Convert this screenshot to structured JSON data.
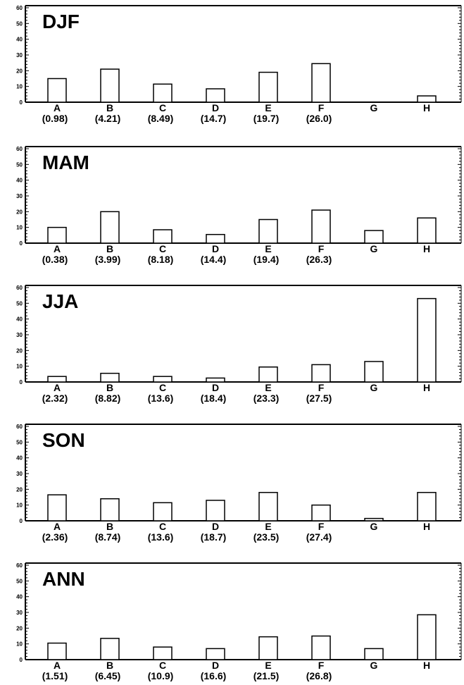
{
  "chart_data": [
    {
      "type": "bar",
      "title": "DJF",
      "categories": [
        "A",
        "B",
        "C",
        "D",
        "E",
        "F",
        "G",
        "H"
      ],
      "category_values": [
        "(0.98)",
        "(4.21)",
        "(8.49)",
        "(14.7)",
        "(19.7)",
        "(26.0)",
        "",
        ""
      ],
      "values": [
        15,
        21,
        11.5,
        8.5,
        19,
        24.5,
        0,
        4
      ],
      "yticks": [
        "0",
        "10",
        "20",
        "30",
        "40",
        "50",
        "60"
      ],
      "ylim": [
        0,
        60
      ],
      "grid": false
    },
    {
      "type": "bar",
      "title": "MAM",
      "categories": [
        "A",
        "B",
        "C",
        "D",
        "E",
        "F",
        "G",
        "H"
      ],
      "category_values": [
        "(0.38)",
        "(3.99)",
        "(8.18)",
        "(14.4)",
        "(19.4)",
        "(26.3)",
        "",
        ""
      ],
      "values": [
        10,
        20,
        8.5,
        5.5,
        15,
        21,
        8,
        16
      ],
      "yticks": [
        "0",
        "10",
        "20",
        "30",
        "40",
        "50",
        "60"
      ],
      "ylim": [
        0,
        60
      ],
      "grid": false
    },
    {
      "type": "bar",
      "title": "JJA",
      "categories": [
        "A",
        "B",
        "C",
        "D",
        "E",
        "F",
        "G",
        "H"
      ],
      "category_values": [
        "(2.32)",
        "(8.82)",
        "(13.6)",
        "(18.4)",
        "(23.3)",
        "(27.5)",
        "",
        ""
      ],
      "values": [
        3.5,
        5.5,
        3.5,
        2.5,
        9.5,
        11,
        13,
        53
      ],
      "yticks": [
        "0",
        "10",
        "20",
        "30",
        "40",
        "50",
        "60"
      ],
      "ylim": [
        0,
        60
      ],
      "grid": false
    },
    {
      "type": "bar",
      "title": "SON",
      "categories": [
        "A",
        "B",
        "C",
        "D",
        "E",
        "F",
        "G",
        "H"
      ],
      "category_values": [
        "(2.36)",
        "(8.74)",
        "(13.6)",
        "(18.7)",
        "(23.5)",
        "(27.4)",
        "",
        ""
      ],
      "values": [
        16.5,
        14,
        11.5,
        13,
        18,
        10,
        1.5,
        18
      ],
      "yticks": [
        "0",
        "10",
        "20",
        "30",
        "40",
        "50",
        "60"
      ],
      "ylim": [
        0,
        60
      ],
      "grid": false
    },
    {
      "type": "bar",
      "title": "ANN",
      "categories": [
        "A",
        "B",
        "C",
        "D",
        "E",
        "F",
        "G",
        "H"
      ],
      "category_values": [
        "(1.51)",
        "(6.45)",
        "(10.9)",
        "(16.6)",
        "(21.5)",
        "(26.8)",
        "",
        ""
      ],
      "values": [
        10.5,
        13.5,
        8,
        7,
        14.5,
        15,
        7,
        28.5
      ],
      "yticks": [
        "0",
        "10",
        "20",
        "30",
        "40",
        "50",
        "60"
      ],
      "ylim": [
        0,
        60
      ],
      "grid": false
    }
  ]
}
